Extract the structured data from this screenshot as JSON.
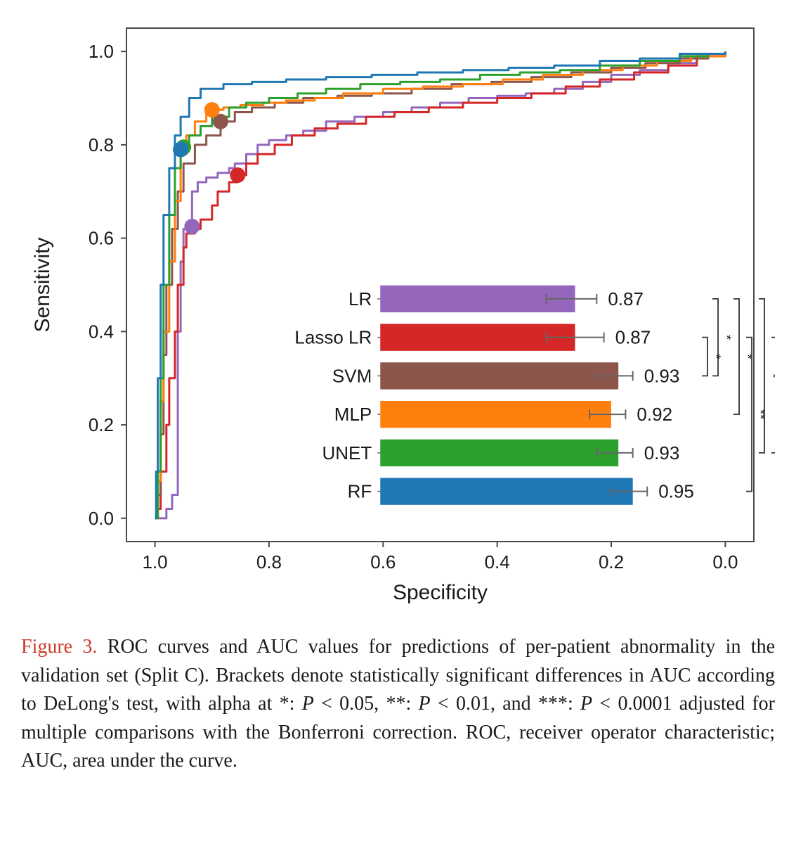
{
  "chart": {
    "type": "roc_with_inset_bar",
    "background_color": "#ffffff",
    "plot_border_color": "#4a4a4a",
    "plot_border_width": 2,
    "xlabel": "Specificity",
    "ylabel": "Sensitivity",
    "label_fontsize": 30,
    "label_color": "#1a1a1a",
    "tick_fontsize": 26,
    "tick_color": "#1a1a1a",
    "x_ticks": [
      1.0,
      0.8,
      0.6,
      0.4,
      0.2,
      0.0
    ],
    "y_ticks": [
      0.0,
      0.2,
      0.4,
      0.6,
      0.8,
      1.0
    ],
    "xlim": [
      1.05,
      -0.05
    ],
    "ylim": [
      -0.05,
      1.05
    ],
    "line_width": 3,
    "marker_radius": 11,
    "series": [
      {
        "name": "LR",
        "color": "#9467bd",
        "auc": 0.87,
        "roc_points": [
          [
            1.0,
            0.0
          ],
          [
            0.98,
            0.02
          ],
          [
            0.97,
            0.05
          ],
          [
            0.96,
            0.22
          ],
          [
            0.96,
            0.4
          ],
          [
            0.955,
            0.55
          ],
          [
            0.95,
            0.62
          ],
          [
            0.94,
            0.63
          ],
          [
            0.935,
            0.7
          ],
          [
            0.925,
            0.72
          ],
          [
            0.91,
            0.73
          ],
          [
            0.89,
            0.74
          ],
          [
            0.87,
            0.75
          ],
          [
            0.86,
            0.76
          ],
          [
            0.84,
            0.78
          ],
          [
            0.82,
            0.8
          ],
          [
            0.8,
            0.81
          ],
          [
            0.77,
            0.82
          ],
          [
            0.74,
            0.83
          ],
          [
            0.7,
            0.85
          ],
          [
            0.65,
            0.86
          ],
          [
            0.6,
            0.87
          ],
          [
            0.55,
            0.88
          ],
          [
            0.5,
            0.89
          ],
          [
            0.45,
            0.9
          ],
          [
            0.4,
            0.905
          ],
          [
            0.35,
            0.91
          ],
          [
            0.3,
            0.92
          ],
          [
            0.25,
            0.935
          ],
          [
            0.2,
            0.95
          ],
          [
            0.15,
            0.96
          ],
          [
            0.1,
            0.975
          ],
          [
            0.05,
            0.99
          ],
          [
            0.0,
            1.0
          ]
        ],
        "marker": [
          0.935,
          0.625
        ]
      },
      {
        "name": "Lasso LR",
        "color": "#d62728",
        "auc": 0.87,
        "roc_points": [
          [
            1.0,
            0.0
          ],
          [
            0.995,
            0.02
          ],
          [
            0.99,
            0.1
          ],
          [
            0.98,
            0.2
          ],
          [
            0.975,
            0.3
          ],
          [
            0.965,
            0.4
          ],
          [
            0.96,
            0.5
          ],
          [
            0.95,
            0.58
          ],
          [
            0.945,
            0.61
          ],
          [
            0.93,
            0.62
          ],
          [
            0.92,
            0.64
          ],
          [
            0.9,
            0.67
          ],
          [
            0.89,
            0.7
          ],
          [
            0.87,
            0.72
          ],
          [
            0.855,
            0.735
          ],
          [
            0.84,
            0.76
          ],
          [
            0.82,
            0.78
          ],
          [
            0.79,
            0.8
          ],
          [
            0.76,
            0.82
          ],
          [
            0.72,
            0.835
          ],
          [
            0.68,
            0.845
          ],
          [
            0.63,
            0.86
          ],
          [
            0.58,
            0.87
          ],
          [
            0.52,
            0.88
          ],
          [
            0.46,
            0.89
          ],
          [
            0.4,
            0.9
          ],
          [
            0.34,
            0.91
          ],
          [
            0.28,
            0.925
          ],
          [
            0.22,
            0.94
          ],
          [
            0.16,
            0.955
          ],
          [
            0.1,
            0.97
          ],
          [
            0.05,
            0.99
          ],
          [
            0.0,
            1.0
          ]
        ],
        "marker": [
          0.855,
          0.735
        ]
      },
      {
        "name": "SVM",
        "color": "#8c564b",
        "auc": 0.93,
        "roc_points": [
          [
            1.0,
            0.0
          ],
          [
            0.995,
            0.05
          ],
          [
            0.99,
            0.18
          ],
          [
            0.985,
            0.35
          ],
          [
            0.98,
            0.5
          ],
          [
            0.97,
            0.62
          ],
          [
            0.96,
            0.7
          ],
          [
            0.95,
            0.76
          ],
          [
            0.93,
            0.8
          ],
          [
            0.91,
            0.82
          ],
          [
            0.885,
            0.85
          ],
          [
            0.86,
            0.87
          ],
          [
            0.83,
            0.88
          ],
          [
            0.79,
            0.89
          ],
          [
            0.74,
            0.9
          ],
          [
            0.68,
            0.905
          ],
          [
            0.62,
            0.91
          ],
          [
            0.55,
            0.92
          ],
          [
            0.48,
            0.93
          ],
          [
            0.41,
            0.935
          ],
          [
            0.34,
            0.945
          ],
          [
            0.27,
            0.955
          ],
          [
            0.2,
            0.965
          ],
          [
            0.14,
            0.975
          ],
          [
            0.08,
            0.985
          ],
          [
            0.03,
            0.995
          ],
          [
            0.0,
            1.0
          ]
        ],
        "marker": [
          0.885,
          0.85
        ]
      },
      {
        "name": "MLP",
        "color": "#ff7f0e",
        "auc": 0.92,
        "roc_points": [
          [
            1.0,
            0.0
          ],
          [
            0.995,
            0.08
          ],
          [
            0.99,
            0.25
          ],
          [
            0.985,
            0.4
          ],
          [
            0.975,
            0.55
          ],
          [
            0.965,
            0.68
          ],
          [
            0.955,
            0.78
          ],
          [
            0.945,
            0.82
          ],
          [
            0.93,
            0.85
          ],
          [
            0.91,
            0.87
          ],
          [
            0.9,
            0.875
          ],
          [
            0.88,
            0.88
          ],
          [
            0.85,
            0.885
          ],
          [
            0.81,
            0.89
          ],
          [
            0.77,
            0.895
          ],
          [
            0.72,
            0.9
          ],
          [
            0.67,
            0.91
          ],
          [
            0.6,
            0.92
          ],
          [
            0.53,
            0.925
          ],
          [
            0.46,
            0.93
          ],
          [
            0.39,
            0.94
          ],
          [
            0.32,
            0.95
          ],
          [
            0.25,
            0.96
          ],
          [
            0.18,
            0.97
          ],
          [
            0.12,
            0.98
          ],
          [
            0.06,
            0.99
          ],
          [
            0.0,
            1.0
          ]
        ],
        "marker": [
          0.9,
          0.875
        ]
      },
      {
        "name": "UNET",
        "color": "#2ca02c",
        "auc": 0.93,
        "roc_points": [
          [
            1.0,
            0.0
          ],
          [
            0.995,
            0.1
          ],
          [
            0.99,
            0.3
          ],
          [
            0.985,
            0.5
          ],
          [
            0.975,
            0.65
          ],
          [
            0.965,
            0.75
          ],
          [
            0.955,
            0.79
          ],
          [
            0.95,
            0.8
          ],
          [
            0.94,
            0.82
          ],
          [
            0.92,
            0.84
          ],
          [
            0.9,
            0.86
          ],
          [
            0.87,
            0.88
          ],
          [
            0.84,
            0.89
          ],
          [
            0.8,
            0.9
          ],
          [
            0.75,
            0.91
          ],
          [
            0.7,
            0.92
          ],
          [
            0.64,
            0.93
          ],
          [
            0.57,
            0.935
          ],
          [
            0.5,
            0.94
          ],
          [
            0.43,
            0.95
          ],
          [
            0.36,
            0.955
          ],
          [
            0.29,
            0.96
          ],
          [
            0.22,
            0.97
          ],
          [
            0.15,
            0.98
          ],
          [
            0.08,
            0.99
          ],
          [
            0.03,
            0.995
          ],
          [
            0.0,
            1.0
          ]
        ],
        "marker": [
          0.95,
          0.795
        ]
      },
      {
        "name": "RF",
        "color": "#1f77b4",
        "auc": 0.95,
        "roc_points": [
          [
            1.0,
            0.0
          ],
          [
            0.998,
            0.1
          ],
          [
            0.995,
            0.3
          ],
          [
            0.99,
            0.5
          ],
          [
            0.985,
            0.65
          ],
          [
            0.975,
            0.75
          ],
          [
            0.965,
            0.82
          ],
          [
            0.955,
            0.86
          ],
          [
            0.94,
            0.9
          ],
          [
            0.92,
            0.92
          ],
          [
            0.88,
            0.93
          ],
          [
            0.83,
            0.935
          ],
          [
            0.77,
            0.94
          ],
          [
            0.7,
            0.945
          ],
          [
            0.62,
            0.95
          ],
          [
            0.54,
            0.955
          ],
          [
            0.46,
            0.96
          ],
          [
            0.38,
            0.965
          ],
          [
            0.3,
            0.97
          ],
          [
            0.22,
            0.98
          ],
          [
            0.15,
            0.985
          ],
          [
            0.08,
            0.995
          ],
          [
            0.0,
            1.0
          ]
        ],
        "marker": [
          0.955,
          0.79
        ]
      }
    ],
    "inset_bar": {
      "x_origin": 0.6,
      "y_origin": 0.47,
      "width": 0.7,
      "row_height": 0.075,
      "bar_start_x": 0.605,
      "bar_max_width": 0.46,
      "auc_range": [
        0.6,
        1.0
      ],
      "label_fontsize": 26,
      "value_fontsize": 26,
      "error_whisker_color": "#666666",
      "rows": [
        {
          "name": "LR",
          "color": "#9467bd",
          "auc": 0.87,
          "lo": 0.83,
          "hi": 0.9
        },
        {
          "name": "Lasso LR",
          "color": "#d62728",
          "auc": 0.87,
          "lo": 0.83,
          "hi": 0.91
        },
        {
          "name": "SVM",
          "color": "#8c564b",
          "auc": 0.93,
          "lo": 0.9,
          "hi": 0.95
        },
        {
          "name": "MLP",
          "color": "#ff7f0e",
          "auc": 0.92,
          "lo": 0.89,
          "hi": 0.94
        },
        {
          "name": "UNET",
          "color": "#2ca02c",
          "auc": 0.93,
          "lo": 0.9,
          "hi": 0.95
        },
        {
          "name": "RF",
          "color": "#1f77b4",
          "auc": 0.95,
          "lo": 0.92,
          "hi": 0.97
        }
      ],
      "significance_brackets": [
        {
          "from": 0,
          "to": 2,
          "stars": "*",
          "col": 0
        },
        {
          "from": 1,
          "to": 2,
          "stars": "*",
          "col": 0,
          "inner": true
        },
        {
          "from": 0,
          "to": 3,
          "stars": "*",
          "col": 1
        },
        {
          "from": 1,
          "to": 5,
          "stars": "**",
          "col": 1.6
        },
        {
          "from": 0,
          "to": 4,
          "stars": "*",
          "col": 2.2
        },
        {
          "from": 1,
          "to": 4,
          "stars": "***",
          "col": 2.8
        },
        {
          "from": 0,
          "to": 5,
          "stars": "***",
          "col": 3.6
        }
      ]
    }
  },
  "caption": {
    "label": "Figure 3.",
    "text_1": " ROC curves and AUC values for predictions of per-patient abnormality in the validation set (Split C). Brackets denote statistically significant differences in AUC according to DeLong's test, with alpha at *: ",
    "p1": "P",
    "ineq1": " < 0.05, **: ",
    "p2": "P",
    "ineq2": " < 0.01, and ***: ",
    "p3": "P",
    "ineq3": " < 0.0001 adjusted for multiple comparisons with the Bonferroni correction. ROC, receiver operator characteristic; AUC, area under the curve."
  }
}
